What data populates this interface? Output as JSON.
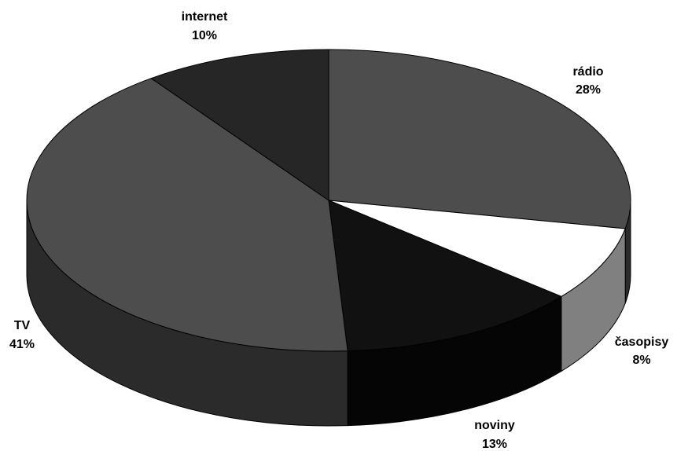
{
  "chart_data": {
    "type": "pie",
    "style": "3d",
    "slices": [
      {
        "name": "rádio",
        "value": 28,
        "label": "28%",
        "color": "#4d4d4d",
        "side_color": "#2b2b2b"
      },
      {
        "name": "časopisy",
        "value": 8,
        "label": "8%",
        "color": "#ffffff",
        "side_color": "#808080"
      },
      {
        "name": "noviny",
        "value": 13,
        "label": "13%",
        "color": "#111111",
        "side_color": "#050505"
      },
      {
        "name": "TV",
        "value": 41,
        "label": "41%",
        "color": "#4d4d4d",
        "side_color": "#2b2b2b"
      },
      {
        "name": "internet",
        "value": 10,
        "label": "10%",
        "color": "#262626",
        "side_color": "#1a1a1a"
      }
    ],
    "legend": "none",
    "data_labels": "outside"
  }
}
